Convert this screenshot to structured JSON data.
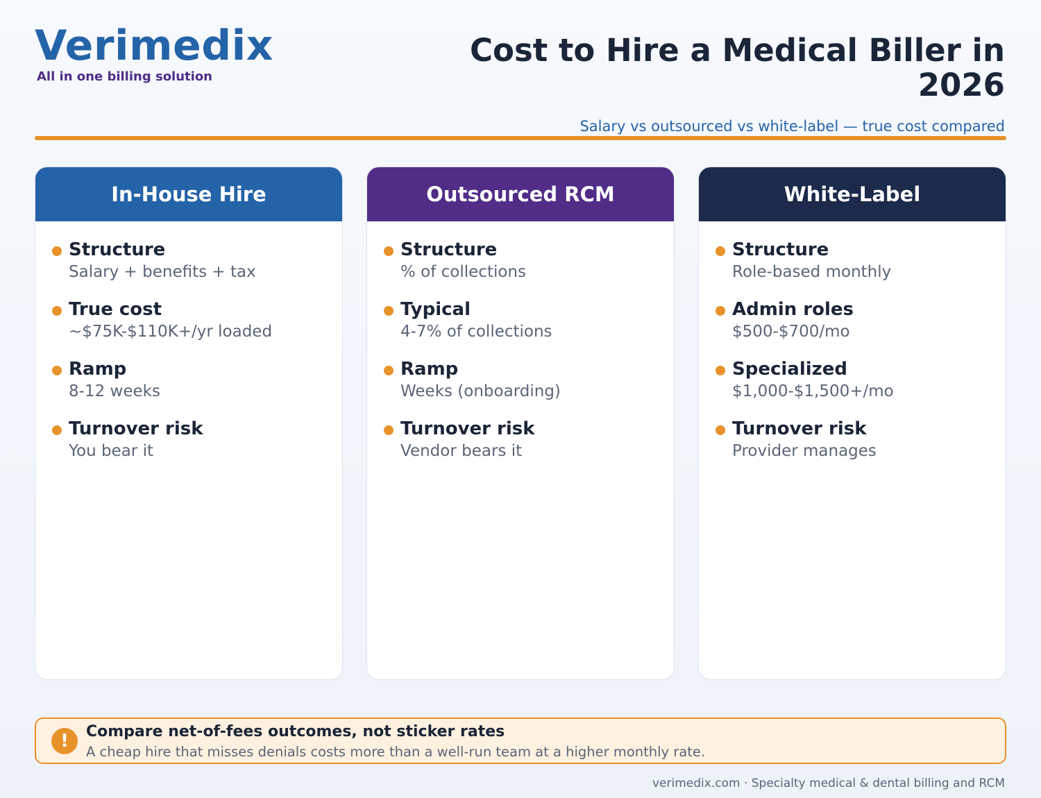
{
  "brand": {
    "name": "Verimedix",
    "tagline": "All in one billing solution"
  },
  "header": {
    "title": "Cost to Hire a Medical Biller in 2026",
    "subtitle": "Salary vs outsourced vs white-label — true cost compared"
  },
  "colors": {
    "brand_blue": "#2563a8",
    "brand_purple": "#4f2d86",
    "dark_navy": "#1b2a4a",
    "accent_orange": "#e7922a"
  },
  "cards": [
    {
      "title": "In-House Hire",
      "color": "#2563a8",
      "items": [
        {
          "label": "Structure",
          "value": "Salary + benefits + tax"
        },
        {
          "label": "True cost",
          "value": "~$75K-$110K+/yr loaded"
        },
        {
          "label": "Ramp",
          "value": "8-12 weeks"
        },
        {
          "label": "Turnover risk",
          "value": "You bear it"
        }
      ]
    },
    {
      "title": "Outsourced RCM",
      "color": "#512d88",
      "items": [
        {
          "label": "Structure",
          "value": "% of collections"
        },
        {
          "label": "Typical",
          "value": "4-7% of collections"
        },
        {
          "label": "Ramp",
          "value": "Weeks (onboarding)"
        },
        {
          "label": "Turnover risk",
          "value": "Vendor bears it"
        }
      ]
    },
    {
      "title": "White-Label",
      "color": "#1c2a4b",
      "items": [
        {
          "label": "Structure",
          "value": "Role-based monthly"
        },
        {
          "label": "Admin roles",
          "value": "$500-$700/mo"
        },
        {
          "label": "Specialized",
          "value": "$1,000-$1,500+/mo"
        },
        {
          "label": "Turnover risk",
          "value": "Provider manages"
        }
      ]
    }
  ],
  "callout": {
    "icon": "exclamation-icon",
    "icon_glyph": "!",
    "title": "Compare net-of-fees outcomes, not sticker rates",
    "text": "A cheap hire that misses denials costs more than a well-run team at a higher monthly rate."
  },
  "footer": {
    "text": "verimedix.com · Specialty medical & dental billing and RCM"
  }
}
